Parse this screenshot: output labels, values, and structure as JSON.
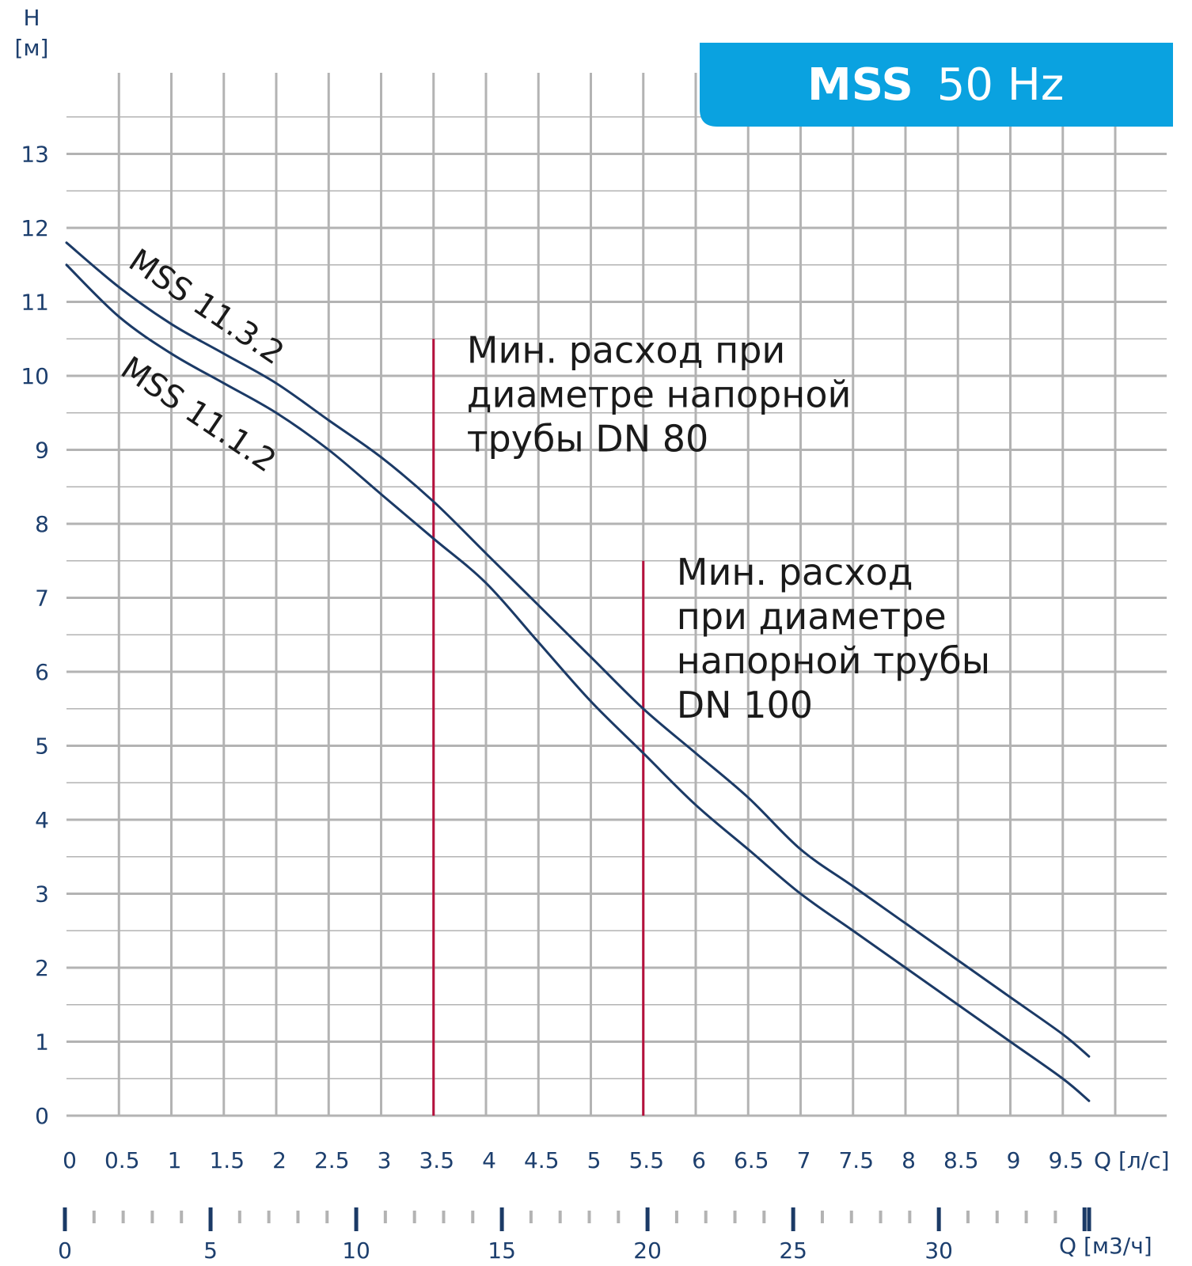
{
  "chart_data": {
    "type": "line",
    "badge": {
      "model": "MSS",
      "frequency": "50 Hz"
    },
    "y_axis": {
      "label": "H",
      "unit": "[м]",
      "range": [
        0,
        13
      ],
      "ticks": [
        0,
        1,
        2,
        3,
        4,
        5,
        6,
        7,
        8,
        9,
        10,
        11,
        12,
        13
      ]
    },
    "x_axis": {
      "label": "Q [л/с]",
      "range": [
        0,
        10
      ],
      "ticks": [
        "0",
        "0.5",
        "1",
        "1.5",
        "2",
        "2.5",
        "3",
        "3.5",
        "4",
        "4.5",
        "5",
        "5.5",
        "6",
        "6.5",
        "7",
        "7.5",
        "8",
        "8.5",
        "9",
        "9.5"
      ]
    },
    "x2_axis": {
      "label": "Q [м3/ч]",
      "major_ticks": [
        "0",
        "5",
        "10",
        "15",
        "20",
        "25",
        "30"
      ]
    },
    "grid": true,
    "series": [
      {
        "name": "MSS 11.3.2",
        "x": [
          0,
          0.5,
          1,
          1.5,
          2,
          2.5,
          3,
          3.5,
          4,
          4.5,
          5,
          5.5,
          6,
          6.5,
          7,
          7.5,
          8,
          8.5,
          9,
          9.5,
          9.75
        ],
        "y": [
          11.8,
          11.2,
          10.7,
          10.3,
          9.9,
          9.4,
          8.9,
          8.3,
          7.6,
          6.9,
          6.2,
          5.5,
          4.9,
          4.3,
          3.6,
          3.1,
          2.6,
          2.1,
          1.6,
          1.1,
          0.8
        ]
      },
      {
        "name": "MSS 11.1.2",
        "x": [
          0,
          0.5,
          1,
          1.5,
          2,
          2.5,
          3,
          3.5,
          4,
          4.5,
          5,
          5.5,
          6,
          6.5,
          7,
          7.5,
          8,
          8.5,
          9,
          9.5,
          9.75
        ],
        "y": [
          11.5,
          10.8,
          10.3,
          9.9,
          9.5,
          9.0,
          8.4,
          7.8,
          7.2,
          6.4,
          5.6,
          4.9,
          4.2,
          3.6,
          3.0,
          2.5,
          2.0,
          1.5,
          1.0,
          0.5,
          0.2
        ]
      }
    ],
    "annotations": [
      {
        "x": 3.5,
        "y_top": 10.5,
        "lines": [
          "Мин. расход при",
          "диаметре напорной",
          "трубы DN 80"
        ]
      },
      {
        "x": 5.5,
        "y_top": 7.5,
        "lines": [
          "Мин. расход",
          "при диаметре",
          "напорной трубы",
          "DN 100"
        ]
      }
    ],
    "colors": {
      "curve": "#1b3a66",
      "annotation_line": "#b5103c",
      "grid": "#b3b3b3",
      "badge": "#0aa2e0",
      "axis_text": "#1d3f6e"
    }
  }
}
